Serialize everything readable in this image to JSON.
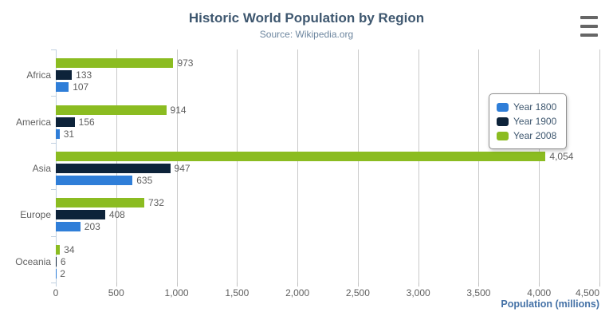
{
  "chart_data": {
    "type": "bar",
    "title": "Historic World Population by Region",
    "subtitle": "Source: Wikipedia.org",
    "categories": [
      "Africa",
      "America",
      "Asia",
      "Europe",
      "Oceania"
    ],
    "series": [
      {
        "name": "Year 1800",
        "color": "#2F7ED8",
        "values": [
          107,
          31,
          635,
          203,
          2
        ]
      },
      {
        "name": "Year 1900",
        "color": "#0D233A",
        "values": [
          133,
          156,
          947,
          408,
          6
        ]
      },
      {
        "name": "Year 2008",
        "color": "#8BBC21",
        "values": [
          973,
          914,
          4054,
          732,
          34
        ]
      }
    ],
    "bar_row_order_top_to_bottom": [
      "Year 2008",
      "Year 1900",
      "Year 1800"
    ],
    "data_labels_visible": true,
    "xlabel": "Population (millions)",
    "xlim": [
      0,
      4500
    ],
    "tick_interval": 500,
    "x_tick_labels": [
      "0",
      "500",
      "1,000",
      "1,500",
      "2,000",
      "2,500",
      "3,000",
      "3,500",
      "4,000",
      "4,500"
    ],
    "grid": true,
    "legend_position": "inside-right"
  },
  "colors": {
    "title": "#3E576F",
    "subtitle": "#6D869F",
    "axis_title": "#4572A7",
    "labels": "#606060",
    "gridline": "#C9C9C9",
    "y_axis_line": "#C0D0E0",
    "legend_border": "#909090",
    "menu_icon": "#666666",
    "background": "#FFFFFF"
  },
  "ui": {
    "context_menu_icon": "hamburger-icon"
  }
}
